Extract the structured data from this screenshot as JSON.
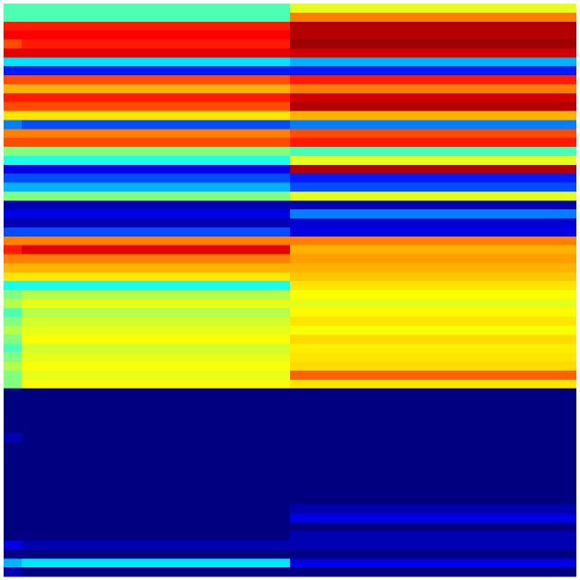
{
  "chart_data": {
    "type": "heatmap",
    "colormap": "jet",
    "clim": [
      0,
      1
    ],
    "categories": [
      null,
      null,
      null
    ],
    "values": [
      [
        0.45,
        0.45,
        0.6
      ],
      [
        0.45,
        0.45,
        0.75
      ],
      [
        0.85,
        0.85,
        0.95
      ],
      [
        0.88,
        0.88,
        0.95
      ],
      [
        0.8,
        0.85,
        0.97
      ],
      [
        0.9,
        0.9,
        0.92
      ],
      [
        0.35,
        0.35,
        0.3
      ],
      [
        0.15,
        0.15,
        0.15
      ],
      [
        0.8,
        0.8,
        0.85
      ],
      [
        0.7,
        0.7,
        0.75
      ],
      [
        0.85,
        0.85,
        0.92
      ],
      [
        0.8,
        0.8,
        0.95
      ],
      [
        0.65,
        0.65,
        0.7
      ],
      [
        0.25,
        0.2,
        0.25
      ],
      [
        0.75,
        0.75,
        0.8
      ],
      [
        0.8,
        0.8,
        0.85
      ],
      [
        0.5,
        0.5,
        0.45
      ],
      [
        0.4,
        0.4,
        0.6
      ],
      [
        0.1,
        0.1,
        0.95
      ],
      [
        0.2,
        0.2,
        0.15
      ],
      [
        0.3,
        0.3,
        0.2
      ],
      [
        0.5,
        0.5,
        0.6
      ],
      [
        0.05,
        0.05,
        0.05
      ],
      [
        0.1,
        0.1,
        0.25
      ],
      [
        0.05,
        0.05,
        0.08
      ],
      [
        0.2,
        0.2,
        0.1
      ],
      [
        0.75,
        0.75,
        0.75
      ],
      [
        0.85,
        0.9,
        0.7
      ],
      [
        0.75,
        0.75,
        0.72
      ],
      [
        0.7,
        0.7,
        0.7
      ],
      [
        0.65,
        0.65,
        0.68
      ],
      [
        0.4,
        0.4,
        0.65
      ],
      [
        0.5,
        0.55,
        0.62
      ],
      [
        0.55,
        0.6,
        0.6
      ],
      [
        0.45,
        0.55,
        0.63
      ],
      [
        0.5,
        0.58,
        0.65
      ],
      [
        0.55,
        0.6,
        0.62
      ],
      [
        0.5,
        0.62,
        0.66
      ],
      [
        0.45,
        0.58,
        0.64
      ],
      [
        0.5,
        0.6,
        0.65
      ],
      [
        0.55,
        0.62,
        0.66
      ],
      [
        0.5,
        0.6,
        0.78
      ],
      [
        0.5,
        0.62,
        0.65
      ],
      [
        0,
        0,
        0
      ],
      [
        0,
        0,
        0
      ],
      [
        0,
        0,
        0
      ],
      [
        0,
        0,
        0
      ],
      [
        0,
        0,
        0
      ],
      [
        0.05,
        0,
        0
      ],
      [
        0,
        0,
        0
      ],
      [
        0,
        0,
        0
      ],
      [
        0,
        0,
        0
      ],
      [
        0,
        0,
        0
      ],
      [
        0,
        0,
        0
      ],
      [
        0,
        0,
        0
      ],
      [
        0,
        0,
        0
      ],
      [
        0,
        0,
        0.05
      ],
      [
        0,
        0,
        0.1
      ],
      [
        0,
        0,
        0
      ],
      [
        0,
        0,
        0.05
      ],
      [
        0.1,
        0.05,
        0.05
      ],
      [
        0,
        0,
        0
      ],
      [
        0.3,
        0.35,
        0.1
      ],
      [
        0.05,
        0,
        0
      ]
    ]
  }
}
